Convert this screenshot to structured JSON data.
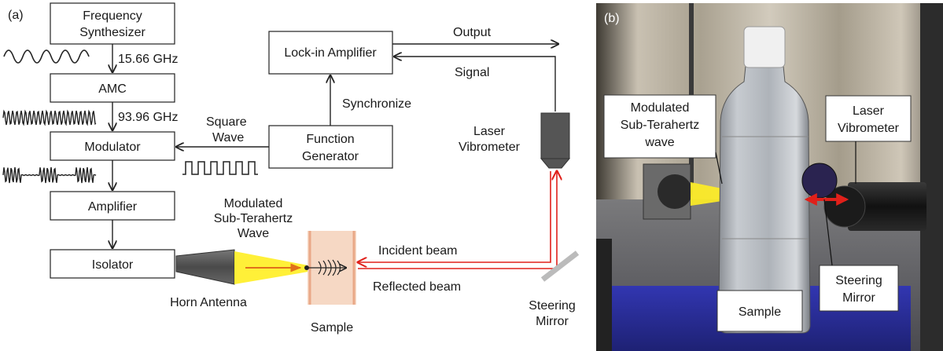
{
  "panel_a": {
    "label": "(a)",
    "blocks": {
      "freq_synth": [
        "Frequency",
        "Synthesizer"
      ],
      "amc": "AMC",
      "modulator": "Modulator",
      "amplifier": "Amplifier",
      "isolator": "Isolator",
      "lockin": "Lock-in Amplifier",
      "funcgen": [
        "Function",
        "Generator"
      ]
    },
    "labels": {
      "freq1": "15.66 GHz",
      "freq2": "93.96 GHz",
      "square_wave": [
        "Square",
        "Wave"
      ],
      "synchronize": "Synchronize",
      "output": "Output",
      "signal": "Signal",
      "laser": [
        "Laser",
        "Vibrometer"
      ],
      "modulated_wave": [
        "Modulated",
        "Sub-Terahertz",
        "Wave"
      ],
      "incident": "Incident beam",
      "reflected": "Reflected beam",
      "horn": "Horn Antenna",
      "sample": "Sample",
      "steering": [
        "Steering",
        "Mirror"
      ]
    }
  },
  "panel_b": {
    "label": "(b)",
    "callouts": {
      "modulated": [
        "Modulated",
        "Sub-Terahertz",
        "wave"
      ],
      "laser": [
        "Laser",
        "Vibrometer"
      ],
      "sample": "Sample",
      "steering": [
        "Steering",
        "Mirror"
      ]
    }
  },
  "colors": {
    "beam": "#e0201a",
    "sub_thz_beam": "#ffee22",
    "sample_fill": "#f6d8c4",
    "sample_edge": "#e9a887",
    "horn": "#555555",
    "vibrometer": "#555555",
    "mirror": "#bbbbbb"
  }
}
